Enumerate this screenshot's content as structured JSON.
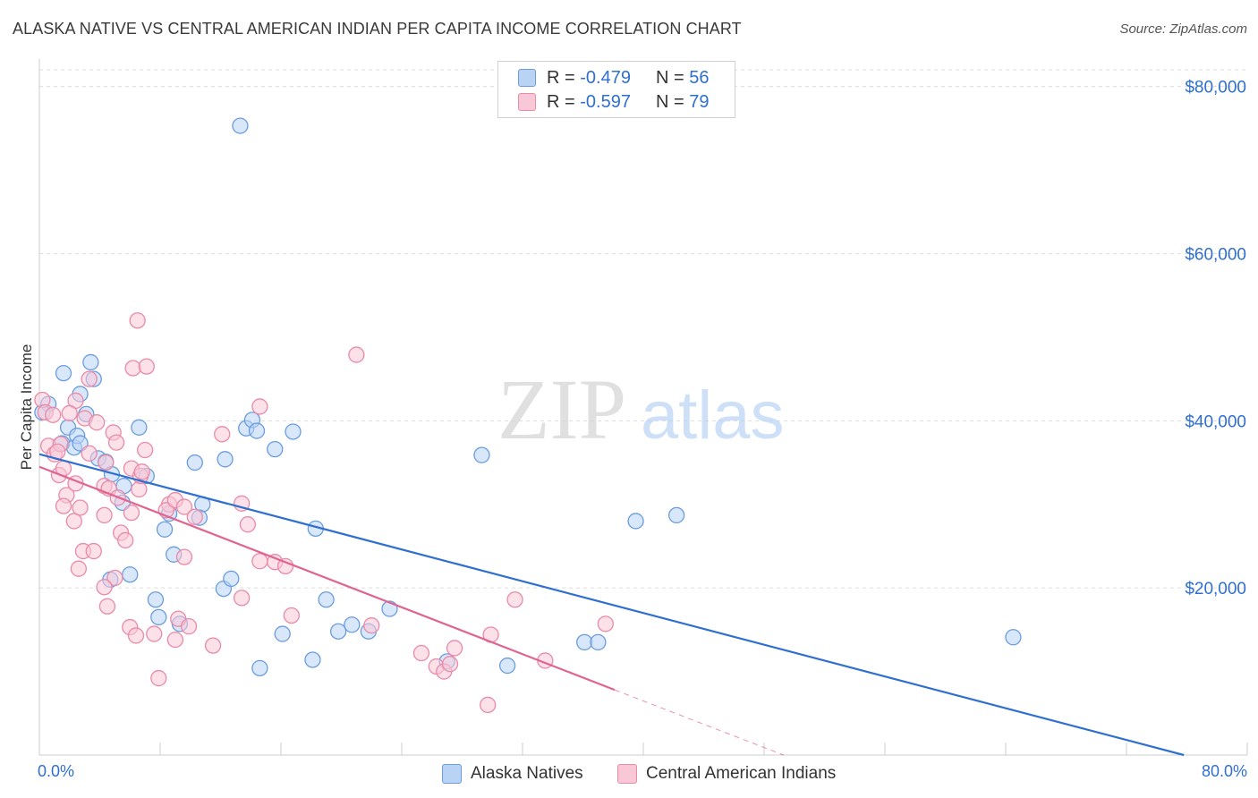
{
  "header": {
    "title": "ALASKA NATIVE VS CENTRAL AMERICAN INDIAN PER CAPITA INCOME CORRELATION CHART",
    "source": "Source: ZipAtlas.com"
  },
  "watermark": {
    "zip": "ZIP",
    "atlas": "atlas"
  },
  "legend": {
    "rows": [
      {
        "r_label": "R =",
        "r_value": "-0.479",
        "n_label": "N =",
        "n_value": "56",
        "fill": "#b9d3f5",
        "stroke": "#6a9de0"
      },
      {
        "r_label": "R =",
        "r_value": "-0.597",
        "n_label": "N =",
        "n_value": "79",
        "fill": "#f9c8d7",
        "stroke": "#e98aa8"
      }
    ]
  },
  "bottom_legend": {
    "series_a": "Alaska Natives",
    "series_b": "Central American Indians"
  },
  "axes": {
    "ylabel": "Per Capita Income",
    "x_min_label": "0.0%",
    "x_max_label": "80.0%",
    "y_tick_labels": [
      "$80,000",
      "$60,000",
      "$40,000",
      "$20,000"
    ]
  },
  "colors": {
    "blue_fill": "#b9d3f5",
    "blue_stroke": "#6a9de0",
    "blue_line": "#2f6fd0",
    "pink_fill": "#f9c8d7",
    "pink_stroke": "#e98aa8",
    "pink_line": "#e0648f",
    "grid": "#dddddd",
    "axis_text": "#2f6fd0"
  },
  "chart_data": {
    "type": "scatter",
    "title": "ALASKA NATIVE VS CENTRAL AMERICAN INDIAN PER CAPITA INCOME CORRELATION CHART",
    "xlabel": "",
    "ylabel": "Per Capita Income",
    "xlim": [
      0,
      80
    ],
    "ylim": [
      0,
      82000
    ],
    "y_ticks": [
      20000,
      40000,
      60000,
      80000
    ],
    "grid": "horizontal dashed",
    "legend_position": "top-center",
    "series": [
      {
        "name": "Alaska Natives",
        "r": -0.479,
        "n": 56,
        "trend": {
          "x": [
            0,
            75.8
          ],
          "y": [
            36000,
            0
          ]
        },
        "points": [
          [
            13.3,
            75300
          ],
          [
            0.6,
            42000
          ],
          [
            1.5,
            37300
          ],
          [
            2.3,
            36800
          ],
          [
            1.6,
            45700
          ],
          [
            3.4,
            47000
          ],
          [
            3.6,
            45000
          ],
          [
            2.7,
            43200
          ],
          [
            3.1,
            40800
          ],
          [
            1.9,
            39200
          ],
          [
            2.5,
            38200
          ],
          [
            2.7,
            37300
          ],
          [
            3.9,
            35500
          ],
          [
            4.4,
            35100
          ],
          [
            4.8,
            33600
          ],
          [
            5.6,
            32200
          ],
          [
            7.1,
            33400
          ],
          [
            6.6,
            39200
          ],
          [
            5.5,
            30200
          ],
          [
            10.3,
            35000
          ],
          [
            12.3,
            35400
          ],
          [
            13.7,
            39100
          ],
          [
            14.1,
            40100
          ],
          [
            14.4,
            38800
          ],
          [
            15.6,
            36600
          ],
          [
            16.8,
            38700
          ],
          [
            10.8,
            30000
          ],
          [
            8.6,
            28900
          ],
          [
            8.3,
            27000
          ],
          [
            10.6,
            28400
          ],
          [
            18.3,
            27100
          ],
          [
            8.9,
            24000
          ],
          [
            6.0,
            21600
          ],
          [
            4.7,
            21000
          ],
          [
            12.2,
            19900
          ],
          [
            12.7,
            21100
          ],
          [
            7.7,
            18600
          ],
          [
            7.9,
            16500
          ],
          [
            9.3,
            15700
          ],
          [
            16.1,
            14500
          ],
          [
            19.0,
            18600
          ],
          [
            19.8,
            14800
          ],
          [
            20.7,
            15600
          ],
          [
            21.8,
            14800
          ],
          [
            23.2,
            17500
          ],
          [
            14.6,
            10400
          ],
          [
            18.1,
            11400
          ],
          [
            27.0,
            11200
          ],
          [
            31.0,
            10700
          ],
          [
            36.1,
            13500
          ],
          [
            37.0,
            13500
          ],
          [
            29.3,
            35900
          ],
          [
            39.5,
            28000
          ],
          [
            42.2,
            28700
          ],
          [
            64.5,
            14100
          ],
          [
            0.2,
            41000
          ]
        ]
      },
      {
        "name": "Central American Indians",
        "r": -0.597,
        "n": 79,
        "trend": {
          "x": [
            0,
            38.1
          ],
          "y": [
            34500,
            7800
          ]
        },
        "trend_dashed": {
          "x": [
            38.1,
            49.3
          ],
          "y": [
            7800,
            0
          ]
        },
        "points": [
          [
            0.2,
            42500
          ],
          [
            0.4,
            41000
          ],
          [
            0.6,
            37000
          ],
          [
            1.0,
            36000
          ],
          [
            1.4,
            37200
          ],
          [
            1.3,
            33500
          ],
          [
            1.6,
            34300
          ],
          [
            1.8,
            31100
          ],
          [
            1.6,
            29800
          ],
          [
            2.3,
            28000
          ],
          [
            2.4,
            32500
          ],
          [
            2.7,
            29600
          ],
          [
            2.6,
            22300
          ],
          [
            2.9,
            24400
          ],
          [
            2.4,
            42400
          ],
          [
            3.3,
            45000
          ],
          [
            3.0,
            40300
          ],
          [
            3.3,
            36100
          ],
          [
            3.8,
            39800
          ],
          [
            4.4,
            35000
          ],
          [
            4.3,
            32200
          ],
          [
            4.6,
            31900
          ],
          [
            4.3,
            28700
          ],
          [
            4.9,
            38600
          ],
          [
            5.1,
            37400
          ],
          [
            5.2,
            30800
          ],
          [
            5.4,
            26600
          ],
          [
            5.7,
            25700
          ],
          [
            5.0,
            21200
          ],
          [
            4.3,
            20100
          ],
          [
            4.5,
            17800
          ],
          [
            6.1,
            29000
          ],
          [
            6.1,
            34300
          ],
          [
            6.6,
            31800
          ],
          [
            6.7,
            33400
          ],
          [
            7.0,
            36500
          ],
          [
            6.8,
            33900
          ],
          [
            6.5,
            52000
          ],
          [
            6.2,
            46300
          ],
          [
            7.1,
            46500
          ],
          [
            6.0,
            15300
          ],
          [
            6.4,
            14300
          ],
          [
            7.6,
            14500
          ],
          [
            8.6,
            30000
          ],
          [
            8.4,
            29300
          ],
          [
            9.0,
            30500
          ],
          [
            9.6,
            29700
          ],
          [
            10.3,
            28500
          ],
          [
            9.6,
            23700
          ],
          [
            9.2,
            16300
          ],
          [
            9.9,
            15400
          ],
          [
            9.0,
            13800
          ],
          [
            11.5,
            13100
          ],
          [
            7.9,
            9200
          ],
          [
            12.1,
            38400
          ],
          [
            13.4,
            30100
          ],
          [
            13.8,
            27600
          ],
          [
            14.6,
            41700
          ],
          [
            14.6,
            23200
          ],
          [
            15.6,
            23100
          ],
          [
            16.3,
            22600
          ],
          [
            16.7,
            16700
          ],
          [
            13.4,
            18800
          ],
          [
            21.0,
            47900
          ],
          [
            22.0,
            15500
          ],
          [
            25.3,
            12200
          ],
          [
            26.3,
            10600
          ],
          [
            26.8,
            10000
          ],
          [
            27.2,
            10900
          ],
          [
            27.5,
            12800
          ],
          [
            29.9,
            14400
          ],
          [
            29.7,
            6000
          ],
          [
            31.5,
            18600
          ],
          [
            33.5,
            11300
          ],
          [
            37.5,
            15700
          ],
          [
            0.9,
            40700
          ],
          [
            1.2,
            36300
          ],
          [
            2.0,
            40900
          ],
          [
            3.6,
            24400
          ]
        ]
      }
    ]
  }
}
